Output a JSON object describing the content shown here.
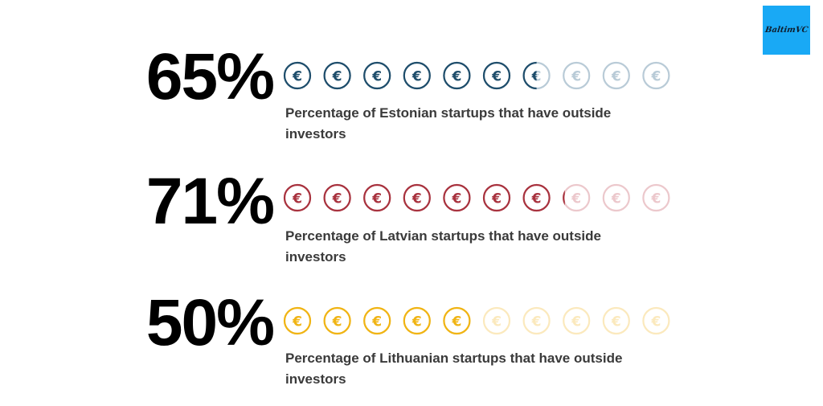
{
  "logo": {
    "text": "BaltimVC"
  },
  "chart_data": {
    "type": "pictograph",
    "icon": "euro-coin-icon",
    "icons_total": 10,
    "items": [
      {
        "value": 65,
        "label": "65%",
        "caption": "Percentage of Estonian startups that have outside investors",
        "color": "#1e4d6b",
        "faded_color": "#b9cbd7"
      },
      {
        "value": 71,
        "label": "71%",
        "caption": "Percentage of Latvian startups that have outside investors",
        "color": "#a8323e",
        "faded_color": "#ecc8cc"
      },
      {
        "value": 50,
        "label": "50%",
        "caption": "Percentage of Lithuanian startups that have outside investors",
        "color": "#f0b414",
        "faded_color": "#fbe9bd"
      }
    ]
  }
}
